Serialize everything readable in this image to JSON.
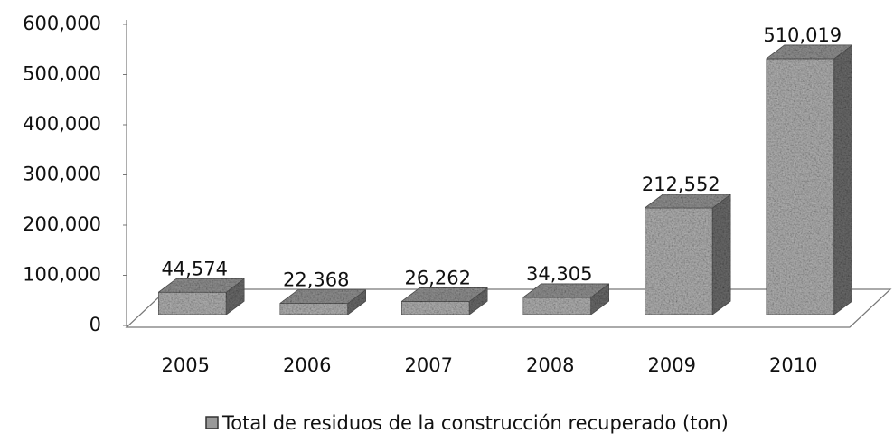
{
  "chart_data": {
    "type": "bar3d",
    "categories": [
      "2005",
      "2006",
      "2007",
      "2008",
      "2009",
      "2010"
    ],
    "series": [
      {
        "name": "Total de residuos de la construcción recuperado (ton)",
        "color": "#8c8c8c",
        "values": [
          44574,
          22368,
          26262,
          34305,
          212552,
          510019
        ],
        "value_labels": [
          "44,574",
          "22,368",
          "26,262",
          "34,305",
          "212,552",
          "510,019"
        ]
      }
    ],
    "ylim": [
      0,
      600000
    ],
    "yticks": [
      {
        "value": 0,
        "label": "0"
      },
      {
        "value": 100000,
        "label": "100,000"
      },
      {
        "value": 200000,
        "label": "200,000"
      },
      {
        "value": 300000,
        "label": "300,000"
      },
      {
        "value": 400000,
        "label": "400,000"
      },
      {
        "value": 500000,
        "label": "500,000"
      },
      {
        "value": 600000,
        "label": "600,000"
      }
    ],
    "legend": "bottom"
  }
}
